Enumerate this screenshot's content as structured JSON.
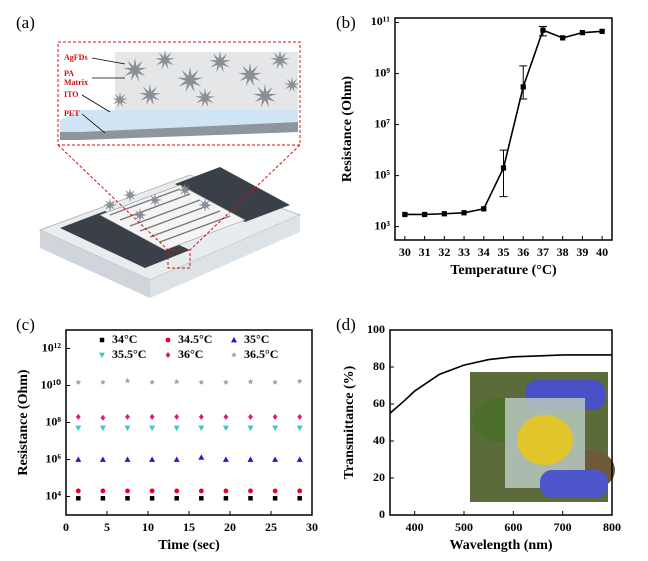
{
  "panels": {
    "labels": [
      "(a)",
      "(b)",
      "(c)",
      "(d)"
    ]
  },
  "schematic": {
    "labels": [
      "AgFDs",
      "PA",
      "Matrix",
      "ITO",
      "PET"
    ]
  },
  "chart_data": [
    {
      "type": "line",
      "xlabel": "Temperature (°C)",
      "ylabel": "Resistance (Ohm)",
      "yscale": "log",
      "color": "#000000",
      "marker": "square",
      "x": [
        30,
        31,
        32,
        33,
        34,
        35,
        36,
        37,
        38,
        39,
        40
      ],
      "values": [
        3000,
        3000,
        3200,
        3500,
        5000,
        200000,
        300000000,
        50000000000,
        25000000000,
        40000000000,
        45000000000
      ],
      "error_lower": [
        null,
        null,
        null,
        null,
        null,
        15000,
        100000000,
        30000000000,
        null,
        null,
        null
      ],
      "error_upper": [
        null,
        null,
        null,
        null,
        null,
        1000000,
        2000000000,
        70000000000,
        null,
        null,
        null
      ],
      "xlim": [
        29.5,
        40.5
      ],
      "xticks": [
        30,
        31,
        32,
        33,
        34,
        35,
        36,
        37,
        38,
        39,
        40
      ],
      "ylim": [
        300,
        150000000000
      ],
      "yticks": [
        {
          "value": 1000,
          "label": "10³"
        },
        {
          "value": 100000,
          "label": "10⁵"
        },
        {
          "value": 10000000,
          "label": "10⁷"
        },
        {
          "value": 1000000000,
          "label": "10⁹"
        },
        {
          "value": 100000000000,
          "label": "10¹¹"
        }
      ]
    },
    {
      "type": "scatter",
      "xlabel": "Time (sec)",
      "ylabel": "Resistance (Ohm)",
      "yscale": "log",
      "legend": "upper center",
      "x": [
        1.5,
        4.5,
        7.5,
        10.5,
        13.5,
        16.5,
        19.5,
        22.5,
        25.5,
        28.5
      ],
      "series": [
        {
          "name": "34°C",
          "color": "#000000",
          "marker": "square",
          "values": [
            8000,
            8000,
            8000,
            8000,
            8000,
            8000,
            8000,
            8000,
            8000,
            8000
          ]
        },
        {
          "name": "34.5°C",
          "color": "#e8002a",
          "marker": "circle",
          "values": [
            20000,
            20000,
            20000,
            20000,
            20000,
            20000,
            20000,
            20000,
            20000,
            20000
          ]
        },
        {
          "name": "35°C",
          "color": "#1a1adb",
          "marker": "triangle-up",
          "values": [
            1000000,
            1000000,
            1000000,
            1000000,
            1000000,
            1300000,
            1000000,
            1000000,
            1000000,
            1000000
          ]
        },
        {
          "name": "35.5°C",
          "color": "#3fc8c8",
          "marker": "triangle-down",
          "values": [
            50000000,
            50000000,
            50000000,
            50000000,
            50000000,
            50000000,
            50000000,
            50000000,
            50000000,
            50000000
          ]
        },
        {
          "name": "36°C",
          "color": "#e0187a",
          "marker": "diamond",
          "values": [
            200000000,
            180000000,
            200000000,
            200000000,
            200000000,
            200000000,
            200000000,
            200000000,
            200000000,
            200000000
          ]
        },
        {
          "name": "36.5°C",
          "color": "#a0a0a0",
          "marker": "star",
          "values": [
            15000000000,
            15000000000,
            18000000000,
            15000000000,
            16000000000,
            15000000000,
            15000000000,
            16000000000,
            15000000000,
            17000000000
          ]
        }
      ],
      "xlim": [
        0,
        30
      ],
      "xticks": [
        0,
        5,
        10,
        15,
        20,
        25,
        30
      ],
      "ylim": [
        1000,
        10000000000000
      ],
      "yticks": [
        {
          "value": 10000,
          "label": "10⁴"
        },
        {
          "value": 1000000,
          "label": "10⁶"
        },
        {
          "value": 100000000,
          "label": "10⁸"
        },
        {
          "value": 10000000000,
          "label": "10¹⁰"
        },
        {
          "value": 1000000000000,
          "label": "10¹²"
        }
      ]
    },
    {
      "type": "line",
      "xlabel": "Wavelength (nm)",
      "ylabel": "Transmittance (%)",
      "color": "#000000",
      "x": [
        350,
        380,
        400,
        450,
        500,
        550,
        600,
        650,
        700,
        750,
        800
      ],
      "values": [
        55,
        62,
        67,
        76,
        81,
        84,
        85.5,
        86,
        86.5,
        86.5,
        86.5
      ],
      "xlim": [
        350,
        800
      ],
      "xticks": [
        400,
        500,
        600,
        700,
        800
      ],
      "ylim": [
        0,
        100
      ],
      "yticks": [
        0,
        20,
        40,
        60,
        80,
        100
      ]
    }
  ]
}
